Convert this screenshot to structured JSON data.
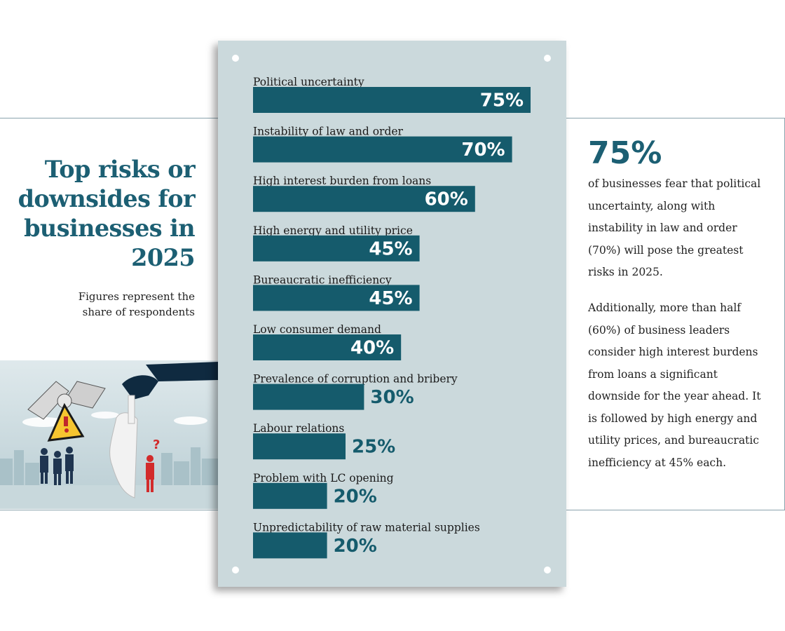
{
  "left_panel": {
    "title": "Top risks or downsides for businesses in 2025",
    "subtitle": "Figures represent the share of respondents",
    "illustration_icons": [
      "handshake-icon",
      "warning-sign-icon",
      "mask-icon",
      "people-icon",
      "question-mark-icon",
      "city-skyline-icon"
    ]
  },
  "right_panel": {
    "stat": "75%",
    "paragraph_1": "of businesses fear that political uncertainty, along with instability in law and order (70%) will pose the greatest risks in 2025.",
    "paragraph_2": "Additionally, more than half (60%) of business leaders consider high interest burdens from loans a significant downside for the year ahead. It is followed by high energy and utility prices, and bureaucratic inefficiency at 45% each."
  },
  "colors": {
    "accent": "#1c5f73",
    "bar": "#155b6c",
    "panel_bg": "#cbd9dc",
    "value_inside": "#ffffff",
    "value_outside": "#155b6c"
  },
  "chart_data": {
    "type": "bar",
    "orientation": "horizontal",
    "title": "Top risks or downsides for businesses in 2025",
    "categories": [
      "Political uncertainty",
      "Instability of law and order",
      "High interest burden from loans",
      "High energy and utility price",
      "Bureaucratic inefficiency",
      "Low consumer demand",
      "Prevalence of corruption and bribery",
      "Labour relations",
      "Problem with LC opening",
      "Unpredictability of raw material supplies"
    ],
    "values": [
      75,
      70,
      60,
      45,
      45,
      40,
      30,
      25,
      20,
      20
    ],
    "value_labels": [
      "75%",
      "70%",
      "60%",
      "45%",
      "45%",
      "40%",
      "30%",
      "25%",
      "20%",
      "20%"
    ],
    "unit": "%",
    "xlim": [
      0,
      75
    ]
  }
}
